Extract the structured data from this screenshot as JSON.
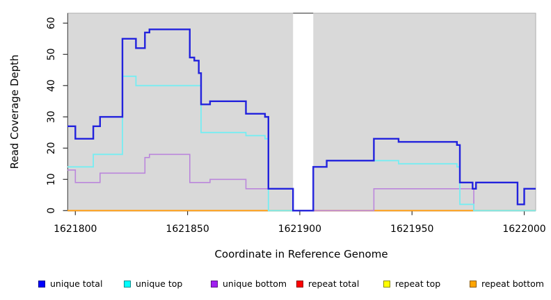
{
  "chart_data": {
    "type": "line",
    "step": true,
    "title": "",
    "xlabel": "Coordinate in Reference Genome",
    "ylabel": "Read Coverage Depth",
    "xlim": [
      1621796.5,
      1622005.1
    ],
    "ylim": [
      0,
      63.2
    ],
    "x_ticks": [
      1621800,
      1621850,
      1621900,
      1621950,
      1622000
    ],
    "y_ticks": [
      0,
      10,
      20,
      30,
      40,
      50,
      60
    ],
    "grid": false,
    "legend_position": "bottom",
    "plot_background": "#D9D9D9",
    "gap_region": {
      "from": 1621897,
      "to": 1621906,
      "color": "#FFFFFF"
    },
    "draw_order": [
      3,
      4,
      5,
      2,
      1,
      0
    ],
    "series": [
      {
        "name": "unique total",
        "legend_color": "#0000FF",
        "line_color": "#2222DD",
        "line_width": 2.4,
        "points": [
          [
            1621796.5,
            27
          ],
          [
            1621800,
            23
          ],
          [
            1621808,
            27
          ],
          [
            1621811,
            30
          ],
          [
            1621821,
            55
          ],
          [
            1621827,
            52
          ],
          [
            1621831,
            57
          ],
          [
            1621833,
            58
          ],
          [
            1621851,
            49
          ],
          [
            1621853,
            48
          ],
          [
            1621855,
            44
          ],
          [
            1621856,
            34
          ],
          [
            1621860,
            35
          ],
          [
            1621876,
            31
          ],
          [
            1621884.5,
            30
          ],
          [
            1621886,
            7
          ],
          [
            1621897,
            0
          ],
          [
            1621906,
            14
          ],
          [
            1621912,
            16
          ],
          [
            1621933,
            23
          ],
          [
            1621944,
            22
          ],
          [
            1621970,
            21
          ],
          [
            1621971.3,
            9
          ],
          [
            1621977,
            7
          ],
          [
            1621978.5,
            9
          ],
          [
            1621997,
            2
          ],
          [
            1622000,
            7
          ],
          [
            1622005.1,
            7
          ]
        ]
      },
      {
        "name": "unique top",
        "legend_color": "#00FFFF",
        "line_color": "#76EDF2",
        "line_width": 1.8,
        "points": [
          [
            1621796.5,
            14
          ],
          [
            1621808,
            18
          ],
          [
            1621821,
            43
          ],
          [
            1621827,
            40
          ],
          [
            1621856,
            25
          ],
          [
            1621876,
            24
          ],
          [
            1621884.5,
            23
          ],
          [
            1621886,
            0
          ],
          [
            1621906,
            14
          ],
          [
            1621912,
            16
          ],
          [
            1621944,
            15
          ],
          [
            1621970,
            14
          ],
          [
            1621971.3,
            2
          ],
          [
            1621977.5,
            0
          ],
          [
            1622005.1,
            0
          ]
        ]
      },
      {
        "name": "unique bottom",
        "legend_color": "#A020F0",
        "line_color": "#BB86DC",
        "line_width": 1.6,
        "points": [
          [
            1621796.5,
            13
          ],
          [
            1621800,
            9
          ],
          [
            1621811,
            12
          ],
          [
            1621831,
            17
          ],
          [
            1621833,
            18
          ],
          [
            1621851,
            9
          ],
          [
            1621860,
            10
          ],
          [
            1621876,
            7
          ],
          [
            1621897,
            0
          ],
          [
            1621933,
            7
          ],
          [
            1621977.5,
            0
          ],
          [
            1622005.1,
            0
          ]
        ]
      },
      {
        "name": "repeat total",
        "legend_color": "#FF0000",
        "line_color": "#FF2020",
        "line_width": 1.5,
        "points": [
          [
            1621796.5,
            0
          ],
          [
            1622005.1,
            0
          ]
        ]
      },
      {
        "name": "repeat top",
        "legend_color": "#FFFF00",
        "line_color": "#FFFF00",
        "line_width": 1.4,
        "points": [
          [
            1621796.5,
            0
          ],
          [
            1622005.1,
            0
          ]
        ]
      },
      {
        "name": "repeat bottom",
        "legend_color": "#FFA500",
        "line_color": "#FFA018",
        "line_width": 2.0,
        "points": [
          [
            1621796.5,
            0
          ],
          [
            1622005.1,
            0
          ]
        ]
      }
    ]
  }
}
